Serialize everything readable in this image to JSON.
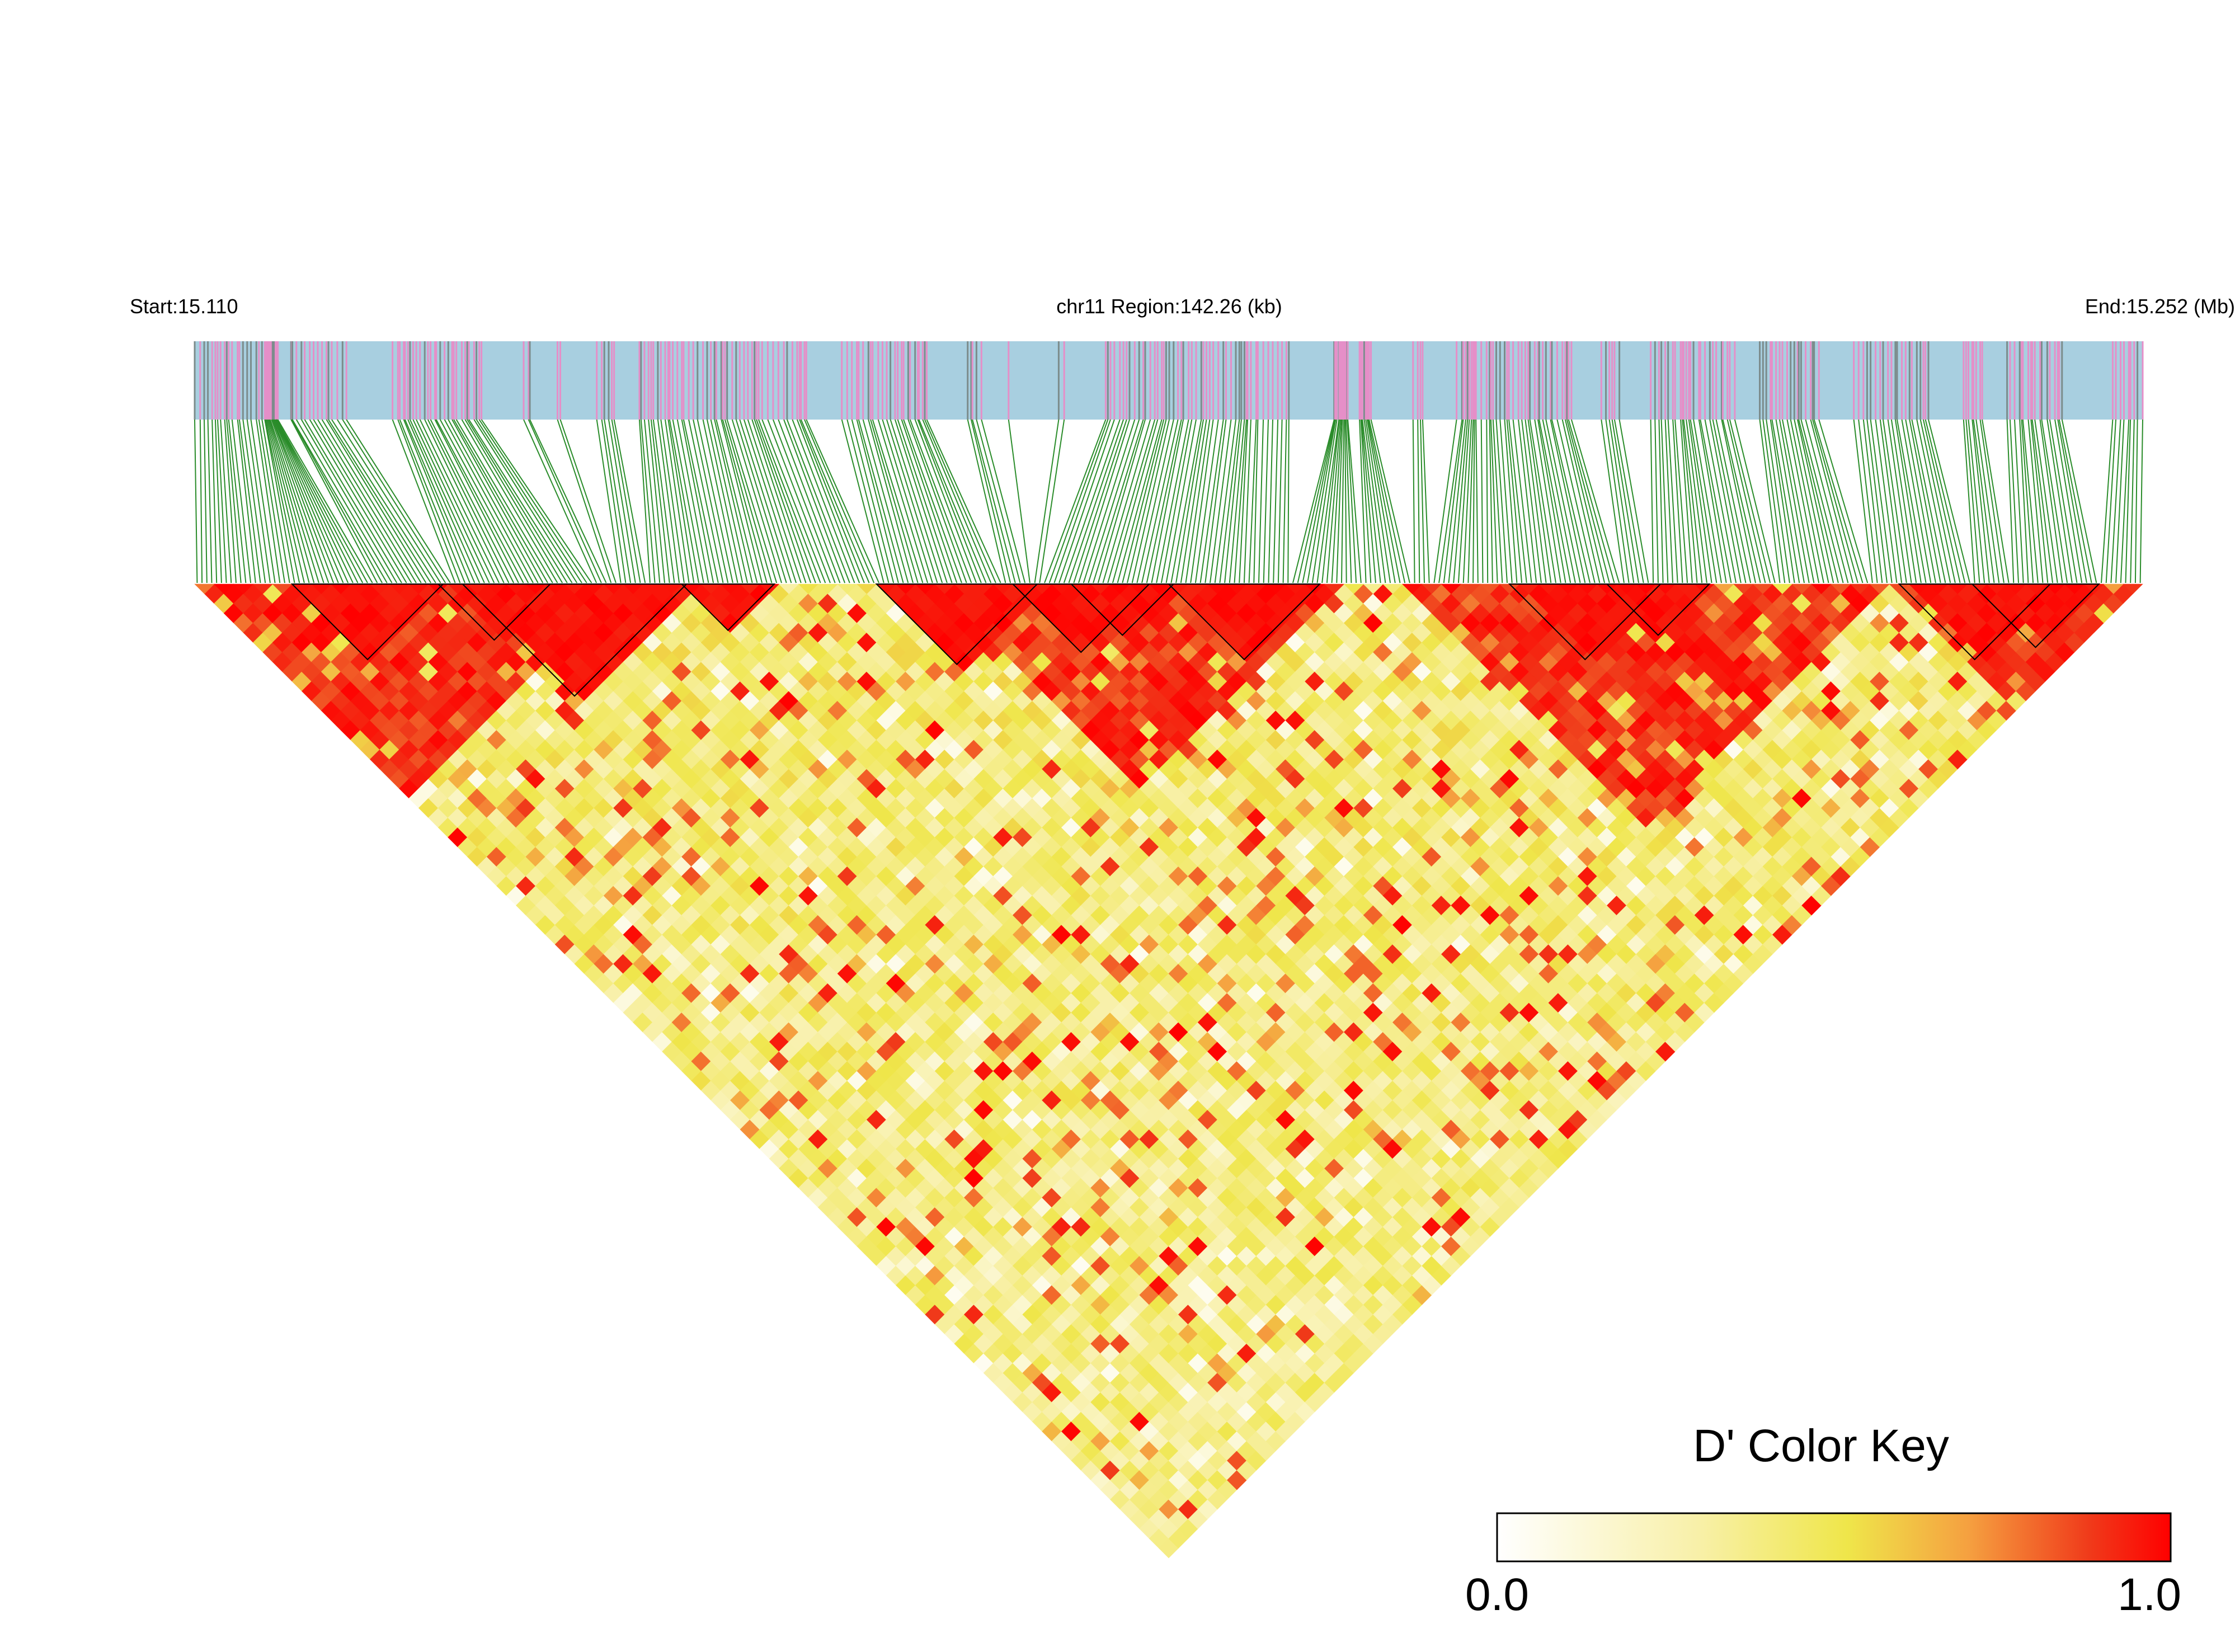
{
  "chart_data": {
    "type": "heatmap",
    "subtype": "linkage-disequilibrium-triangle",
    "header": {
      "start_label": "Start:15.110",
      "region_label": "chr11 Region:142.26 (kb)",
      "end_label": "End:15.252 (Mb)"
    },
    "region": {
      "chromosome": "chr11",
      "start_mb": 15.11,
      "end_mb": 15.252,
      "span_kb": 142.26
    },
    "metric": "D'",
    "snp_count": 400,
    "snp_track": {
      "background_color": "#a8cfe0",
      "marker_colors": [
        "#e58fc8",
        "#7c8c8c"
      ],
      "connector_color": "#2a8c2a"
    },
    "ld_blocks": [
      {
        "first_snp": 20,
        "last_snp": 50
      },
      {
        "first_snp": 55,
        "last_snp": 100
      },
      {
        "first_snp": 50,
        "last_snp": 72
      },
      {
        "first_snp": 100,
        "last_snp": 118
      },
      {
        "first_snp": 168,
        "last_snp": 195
      },
      {
        "first_snp": 140,
        "last_snp": 172
      },
      {
        "first_snp": 200,
        "last_snp": 230
      },
      {
        "first_snp": 180,
        "last_snp": 200
      },
      {
        "first_snp": 270,
        "last_snp": 300
      },
      {
        "first_snp": 290,
        "last_snp": 310
      },
      {
        "first_snp": 350,
        "last_snp": 380
      },
      {
        "first_snp": 365,
        "last_snp": 390
      }
    ],
    "high_ld_regions": [
      {
        "from_snp": 0,
        "to_snp": 85
      },
      {
        "from_snp": 150,
        "to_snp": 235
      },
      {
        "from_snp": 245,
        "to_snp": 345
      },
      {
        "from_snp": 345,
        "to_snp": 400
      }
    ],
    "color_key": {
      "title": "D' Color Key",
      "min_label": "0.0",
      "max_label": "1.0",
      "range": [
        0.0,
        1.0
      ],
      "color_stops": [
        "#ffffff",
        "#f8f0a8",
        "#efe64a",
        "#f5a040",
        "#f03a1a",
        "#ff0000"
      ]
    }
  }
}
